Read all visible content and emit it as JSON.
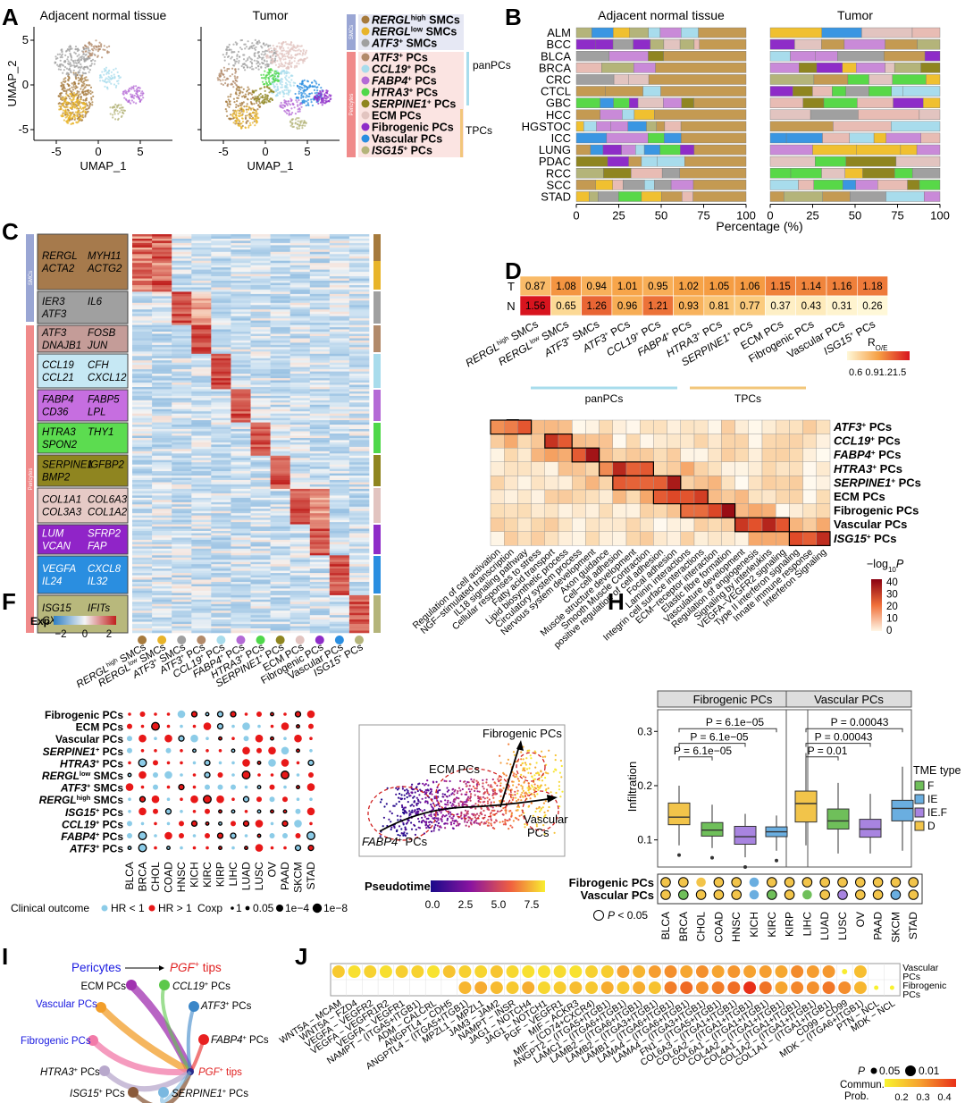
{
  "chart_data": [
    {
      "panel": "A",
      "type": "scatter",
      "subplots": [
        "Adjacent normal tissue",
        "Tumor"
      ],
      "xlabel": "UMAP_1",
      "ylabel": "UMAP_2",
      "xticks": [
        "-5",
        "0",
        "5"
      ],
      "yticks": [
        "5",
        "0",
        "-5"
      ],
      "group_labels": [
        "SMCs",
        "Pericytes",
        "panPCs",
        "TPCs"
      ],
      "legend": [
        {
          "name": "RERGL",
          "sup": "high",
          "rest": " SMCs",
          "color": "#a67a3c"
        },
        {
          "name": "RERGL",
          "sup": "low",
          "rest": " SMCs",
          "color": "#e8b42a"
        },
        {
          "name": "ATF3",
          "sup": "+",
          "rest": " SMCs",
          "color": "#a0a0a0"
        },
        {
          "name": "ATF3",
          "sup": "+",
          "rest": " PCs",
          "color": "#b28a6a"
        },
        {
          "name": "CCL19",
          "sup": "+",
          "rest": " PCs",
          "color": "#a8dcec"
        },
        {
          "name": "FABP4",
          "sup": "+",
          "rest": " PCs",
          "color": "#b46ad6"
        },
        {
          "name": "HTRA3",
          "sup": "+",
          "rest": " PCs",
          "color": "#4fd84a"
        },
        {
          "name": "SERPINE1",
          "sup": "+",
          "rest": " PCs",
          "color": "#8f8520"
        },
        {
          "name": "ECM PCs",
          "sup": "",
          "rest": "",
          "color": "#e2c4c0"
        },
        {
          "name": "Fibrogenic PCs",
          "sup": "",
          "rest": "",
          "color": "#8e2cc8"
        },
        {
          "name": "Vascular  PCs",
          "sup": "",
          "rest": "",
          "color": "#2a8ee0"
        },
        {
          "name": "ISG15",
          "sup": "+",
          "rest": " PCs",
          "color": "#b4b47a"
        }
      ]
    },
    {
      "panel": "B",
      "type": "bar",
      "subplots": [
        "Adjacent normal tissue",
        "Tumor"
      ],
      "categories": [
        "ALM",
        "BCC",
        "BLCA",
        "BRCA",
        "CRC",
        "CTCL",
        "GBC",
        "HCC",
        "HGSTOC",
        "ICC",
        "LUNG",
        "PDAC",
        "RCC",
        "SCC",
        "STAD"
      ],
      "xticks": [
        "0",
        "25",
        "50",
        "75",
        "100"
      ],
      "xlabel": "Percentage (%)"
    },
    {
      "panel": "C",
      "type": "heatmap",
      "gene_blocks": [
        [
          "RERGL",
          "MYH11",
          "ACTA2",
          "ACTG2"
        ],
        [
          "IER3",
          "IL6",
          "ATF3",
          ""
        ],
        [
          "ATF3",
          "FOSB",
          "DNAJB1",
          "JUN"
        ],
        [
          "CCL19",
          "CFH",
          "CCL21",
          "CXCL12"
        ],
        [
          "FABP4",
          "FABP5",
          "CD36",
          "LPL"
        ],
        [
          "HTRA3",
          "THY1",
          "SPON2",
          ""
        ],
        [
          "SERPINE1",
          "IGFBP2",
          "BMP2",
          ""
        ],
        [
          "COL1A1",
          "COL6A3",
          "COL3A3",
          "COL1A2"
        ],
        [
          "LUM",
          "SFRP2",
          "VCAN",
          "FAP"
        ],
        [
          "VEGFA",
          "CXCL8",
          "IL24",
          "IL32"
        ],
        [
          "ISG15",
          "IFITs",
          "CXCL10",
          ""
        ]
      ],
      "side_labels": [
        "SMCs",
        "Pericytes"
      ],
      "legend_title": "Exp",
      "legend_ticks": [
        "−2",
        "0",
        "2"
      ]
    },
    {
      "panel": "D",
      "type": "heatmap",
      "rows": [
        "T",
        "N"
      ],
      "columns": [
        "RERGL high SMCs",
        "RERGL low SMCs",
        "ATF3+ SMCs",
        "ATF3+ PCs",
        "CCL19+ PCs",
        "FABP4+ PCs",
        "HTRA3+ PCs",
        "SERPINE1+ PCs",
        "ECM PCs",
        "Fibrogenic PCs",
        "Vascular PCs",
        "ISG15+ PCs"
      ],
      "T": [
        "0.87",
        "1.08",
        "0.94",
        "1.01",
        "0.95",
        "1.02",
        "1.05",
        "1.06",
        "1.15",
        "1.14",
        "1.16",
        "1.18"
      ],
      "N": [
        "1.56",
        "0.65",
        "1.26",
        "0.96",
        "1.21",
        "0.93",
        "0.81",
        "0.77",
        "0.37",
        "0.43",
        "0.31",
        "0.26"
      ],
      "legend_title": "R",
      "legend_sub": "O/E",
      "legend_ticks": "0.6 0.91.21.5",
      "brackets": [
        "panPCs",
        "TPCs"
      ]
    },
    {
      "panel": "E",
      "type": "heatmap",
      "rows": [
        "ATF3+ PCs",
        "CCL19+ PCs",
        "FABP4+ PCs",
        "HTRA3+ PCs",
        "SERPINE1+ PCs",
        "ECM PCs",
        "Fibrogenic PCs",
        "Vascular  PCs",
        "ISG15+ PCs"
      ],
      "columns": [
        "Regulation of cell activation",
        "NGF−stimulated transcription",
        "IL18 signaling pathway",
        "Cellular responses to stress",
        "Fatty acid transport",
        "Lipid biosynthetic process",
        "Circulatory system process",
        "Nervous system development",
        "Axon guidance",
        "Cell−cell adhesion",
        "Muscle structure development",
        "Smooth Muscle Contraction",
        "positive regulation of cell adhesion",
        "Focal adhesion",
        "Laminin interactions",
        "Integrin cell surface interactions",
        "ECM−receptor interaction",
        "Elastic fibre formation",
        "Vasculature development",
        "Regulation of angiogenesis",
        "Signaling by interleukins",
        "VEGFA−VEGFR2 signaling",
        "Type II interferon signaling",
        "Innate immune response",
        "Interferon Signaling"
      ],
      "legend_title": "−log",
      "legend_sub": "10",
      "legend_P": "P",
      "legend_ticks": [
        "40",
        "30",
        "20",
        "10",
        "0"
      ]
    },
    {
      "panel": "F",
      "type": "scatter",
      "rows": [
        "Fibrogenic PCs",
        "ECM PCs",
        "Vascular  PCs",
        "SERPINE1+ PCs",
        "HTRA3+ PCs",
        "RERGL low SMCs",
        "ATF3+ SMCs",
        "RERGL high SMCs",
        "ISG15+ PCs",
        "CCL19+ PCs",
        "FABP4+ PCs",
        "ATF3+ PCs"
      ],
      "columns": [
        "BLCA",
        "BRCA",
        "CHOL",
        "COAD",
        "HNSC",
        "KICH",
        "KIRC",
        "KIRP",
        "LIHC",
        "LUAD",
        "LUSC",
        "OV",
        "PAAD",
        "SKCM",
        "STAD"
      ],
      "legend": [
        "Clinical outcome",
        "HR < 1",
        "HR > 1",
        "Coxp",
        "0.05",
        "1e−4",
        "1e−8"
      ]
    },
    {
      "panel": "G",
      "type": "scatter",
      "annotations": [
        "Fibrogenic PCs",
        "ECM PCs",
        "FABP4+ PCs",
        "Vascular",
        "PCs"
      ],
      "legend_title": "Pseudotime",
      "legend_ticks": [
        "0.0",
        "2.5",
        "5.0",
        "7.5"
      ]
    },
    {
      "panel": "H",
      "type": "bar",
      "facets": [
        "Fibrogenic PCs",
        "Vascular PCs"
      ],
      "ylabel": "Infiltration",
      "yticks": [
        "0.3",
        "0.2",
        "0.1"
      ],
      "categories": [
        "BLCA",
        "BRCA",
        "CHOL",
        "COAD",
        "HNSC",
        "KICH",
        "KIRC",
        "KIRP",
        "LIHC",
        "LUAD",
        "LUSC",
        "OV",
        "PAAD",
        "SKCM",
        "STAD"
      ],
      "pvalues_left": [
        "P = 6.1e−05",
        "P = 6.1e−05",
        "P = 6.1e−05"
      ],
      "pvalues_right": [
        "P = 0.00043",
        "P = 0.00043",
        "P = 0.01"
      ],
      "legend_title": "TME type",
      "legend": [
        {
          "name": "F",
          "color": "#6fbf5a"
        },
        {
          "name": "IE",
          "color": "#6aaee0"
        },
        {
          "name": "IE.F",
          "color": "#a884e0"
        },
        {
          "name": "D",
          "color": "#f2c44a"
        }
      ],
      "dot_rows": [
        "Fibrogenic PCs",
        "Vascular PCs"
      ],
      "dot_note": "P < 0.05"
    },
    {
      "panel": "I",
      "type": "diagram",
      "title_left": "Pericytes",
      "title_right": "PGF",
      "title_right_sup": "+",
      "title_right_tail": " tips",
      "sources": [
        "ECM PCs",
        "Vascular  PCs",
        "Fibrogenic PCs",
        "HTRA3+ PCs",
        "ISG15+ PCs"
      ],
      "targets": [
        "CCL19+ PCs",
        "ATF3+ PCs",
        "FABP4+ PCs",
        "PGF+ tips",
        "SERPINE1+ PCs"
      ]
    },
    {
      "panel": "J",
      "type": "scatter",
      "rows": [
        "Vascular PCs",
        "Fibrogenic PCs"
      ],
      "columns": [
        "WNT5A − MCAM",
        "WNT5A − FZD4",
        "VEGFA − VEGFR2",
        "VEGFA − VEGFR1R2",
        "VEGFA − VEGFR1",
        "NAMPT − (ITGA5+ITGB1)",
        "ADM − CALCRL",
        "ANGPTL4 − CDH5",
        "ANGPTL4 − (ITGA5+ITGB1)",
        "MPZL1 − MPZL1",
        "JAM3 − JAM2",
        "NAMPT − INSR",
        "JAG1 − NOTCH4",
        "JAG1 − NOTCH1",
        "PGF − VEGFR1",
        "MIF − ACKR3",
        "MIF − (CD74+CXCR4)",
        "ANGPT2 − (ITGA5+ITGB1)",
        "LAMC1 − (ITGA6+ITGB1)",
        "LAMB2 − (ITGA6+ITGB1)",
        "LAMB2 − (ITGA3+ITGB1)",
        "LAMB1 − (ITGA6+ITGB1)",
        "LAMA4 − (ITGA6+ITGB1)",
        "LAMA4 − (ITGA3+ITGB1)",
        "FN1 − (ITGA5+ITGB1)",
        "COL6A3 − (ITGA1+ITGB1)",
        "COL6A2 − (ITGA1+ITGB1)",
        "COL6A1 − (ITGA1+ITGB1)",
        "COL4A2 − (ITGA1+ITGB1)",
        "COL4A1 − (ITGA1+ITGB1)",
        "COL1A2 − (ITGA1+ITGB1)",
        "COL1A1 − (ITGA1+ITGB1)",
        "CD99 − CD99",
        "MDK − (ITGA6+ITGB1)",
        "PTN − NCL",
        "MDK − NCL"
      ],
      "legend_p": [
        "P",
        "0.05",
        "0.01"
      ],
      "legend_prob": [
        "Commun.",
        "Prob."
      ],
      "legend_ticks": [
        "0.2",
        "0.3",
        "0.4"
      ]
    }
  ],
  "panel_letters": [
    "A",
    "B",
    "C",
    "D",
    "E",
    "F",
    "G",
    "H",
    "I",
    "J"
  ]
}
